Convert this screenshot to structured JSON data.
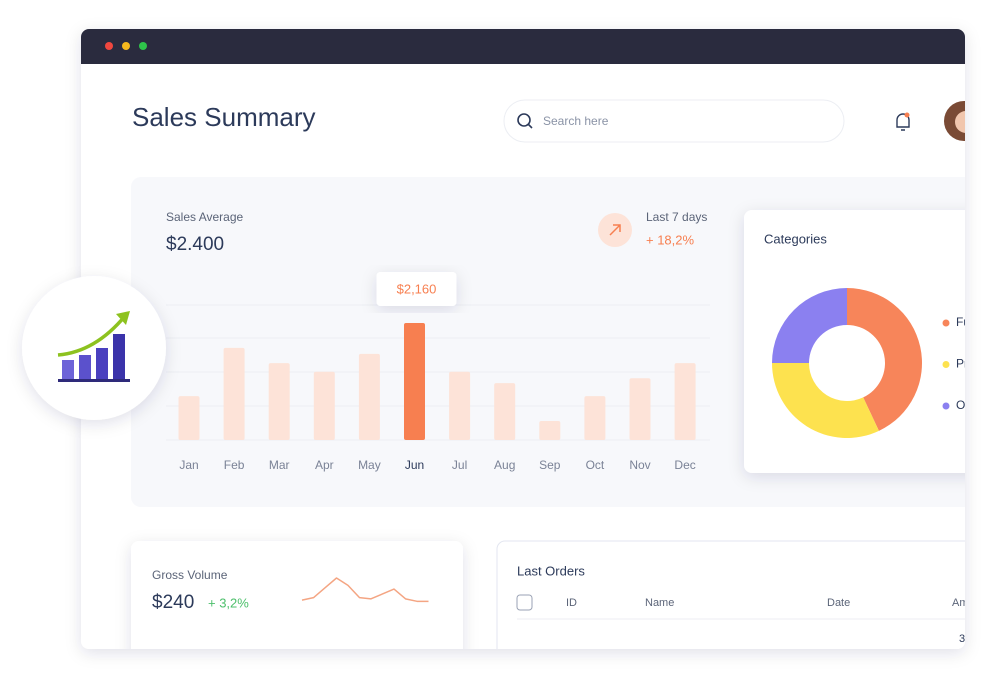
{
  "header": {
    "title": "Sales Summary",
    "search_placeholder": "Search here"
  },
  "sales": {
    "label": "Sales Average",
    "value": "$2.400",
    "period": "Last 7 days",
    "change": "+ 18,2%",
    "chart_data": {
      "type": "bar",
      "categories": [
        "Jan",
        "Feb",
        "Mar",
        "Apr",
        "May",
        "Jun",
        "Jul",
        "Aug",
        "Sep",
        "Oct",
        "Nov",
        "Dec"
      ],
      "values": [
        810,
        1700,
        1420,
        1260,
        1590,
        2160,
        1260,
        1050,
        350,
        810,
        1140,
        1420
      ],
      "value_labels": [
        null,
        null,
        null,
        null,
        null,
        "$2,160",
        null,
        null,
        null,
        null,
        null,
        null
      ],
      "colors": [
        "#fde3d8",
        "#fde3d8",
        "#fde3d8",
        "#fde3d8",
        "#fde3d8",
        "#f77f50",
        "#fde3d8",
        "#fde3d8",
        "#fde3d8",
        "#fde3d8",
        "#fde3d8",
        "#fde3d8"
      ]
    }
  },
  "categories_card": {
    "title": "Categories",
    "chart_data": {
      "type": "donut",
      "categories": [
        "Fu",
        "Pr",
        "O"
      ],
      "values": [
        43,
        32,
        25
      ],
      "colors": [
        "#f7855a",
        "#fde24f",
        "#8b80f0"
      ]
    }
  },
  "gross_volume": {
    "label": "Gross Volume",
    "value": "$240",
    "change": "+ 3,2%",
    "chart_data": {
      "type": "line",
      "values": [
        4,
        6,
        14,
        22,
        16,
        6,
        5,
        9,
        13,
        5,
        3,
        3
      ],
      "color": "#f4a583"
    }
  },
  "last_orders": {
    "title": "Last Orders",
    "table": {
      "columns": [
        "ID",
        "Name",
        "Date",
        "Am"
      ],
      "rows": [
        [
          "3"
        ]
      ]
    }
  }
}
